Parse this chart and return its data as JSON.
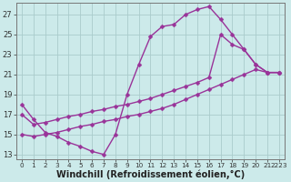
{
  "background_color": "#cceaea",
  "grid_color": "#aacccc",
  "line_color": "#993399",
  "marker": "D",
  "markersize": 2.5,
  "linewidth": 1.0,
  "xlabel": "Windchill (Refroidissement éolien,°C)",
  "xlabel_fontsize": 7.0,
  "ylabel_ticks": [
    13,
    15,
    17,
    19,
    21,
    23,
    25,
    27
  ],
  "xtick_labels": [
    "0",
    "1",
    "2",
    "3",
    "4",
    "5",
    "6",
    "7",
    "8",
    "9",
    "10",
    "11",
    "12",
    "13",
    "14",
    "15",
    "16",
    "17",
    "18",
    "19",
    "20",
    "21",
    "2223"
  ],
  "xlim": [
    -0.5,
    22.5
  ],
  "ylim": [
    12.5,
    28.2
  ],
  "series": [
    {
      "x": [
        0,
        1,
        2,
        3,
        4,
        5,
        6,
        7,
        8,
        9,
        10,
        11,
        12,
        13,
        14,
        15,
        16,
        17,
        18,
        19,
        20,
        21,
        22
      ],
      "y": [
        18.0,
        16.5,
        15.2,
        14.8,
        14.2,
        13.8,
        13.3,
        13.0,
        15.0,
        19.0,
        22.0,
        24.8,
        25.8,
        26.0,
        27.0,
        27.5,
        27.8,
        26.5,
        25.0,
        23.5,
        22.0,
        21.2,
        21.2
      ]
    },
    {
      "x": [
        0,
        1,
        2,
        3,
        4,
        5,
        6,
        7,
        8,
        9,
        10,
        11,
        12,
        13,
        14,
        15,
        16,
        17,
        18,
        19,
        20,
        21,
        22
      ],
      "y": [
        17.0,
        16.0,
        16.2,
        16.5,
        16.8,
        17.0,
        17.3,
        17.5,
        17.8,
        18.0,
        18.3,
        18.6,
        19.0,
        19.4,
        19.8,
        20.2,
        20.7,
        25.0,
        24.0,
        23.5,
        22.0,
        21.2,
        21.2
      ]
    },
    {
      "x": [
        0,
        1,
        2,
        3,
        4,
        5,
        6,
        7,
        8,
        9,
        10,
        11,
        12,
        13,
        14,
        15,
        16,
        17,
        18,
        19,
        20,
        21,
        22
      ],
      "y": [
        15.0,
        14.8,
        15.0,
        15.2,
        15.5,
        15.8,
        16.0,
        16.3,
        16.5,
        16.8,
        17.0,
        17.3,
        17.6,
        18.0,
        18.5,
        19.0,
        19.5,
        20.0,
        20.5,
        21.0,
        21.5,
        21.2,
        21.2
      ]
    }
  ]
}
